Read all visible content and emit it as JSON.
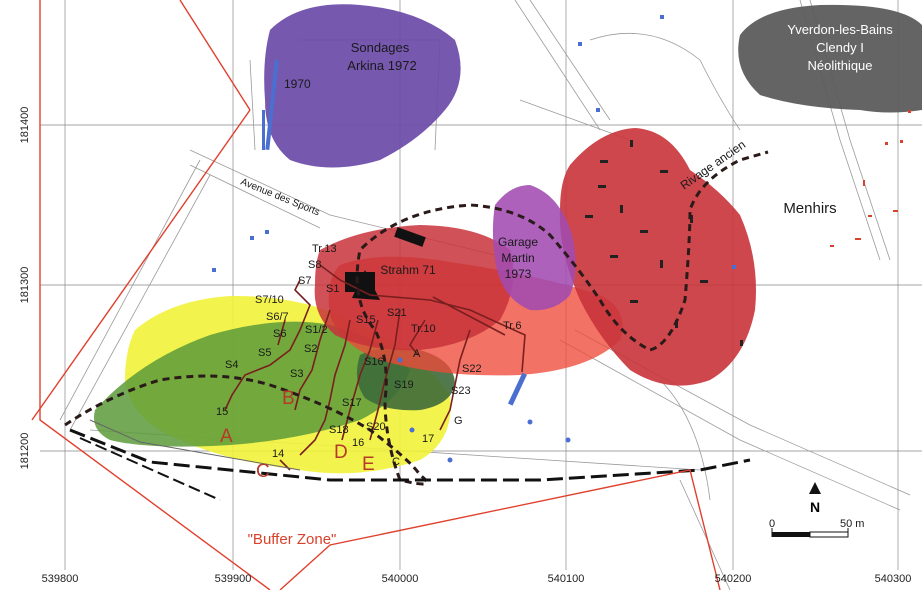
{
  "map": {
    "areas": {
      "sondages": [
        "Sondages",
        "Arkina 1972"
      ],
      "year_1970": "1970",
      "clendy": [
        "Yverdon-les-Bains",
        "Clendy I",
        "Néolithique"
      ],
      "menhirs": "Menhirs",
      "garage": [
        "Garage",
        "Martin",
        "1973"
      ],
      "strahm": "Strahm 71",
      "avenue": "Avenue des Sports",
      "rivage": "Rivage ancien",
      "buffer": "\"Buffer Zone\""
    },
    "soundings": {
      "tr13": "Tr.13",
      "s8": "S8",
      "s7": "S7",
      "s7_10": "S7/10",
      "s6_7": "S6/7",
      "s6": "S6",
      "s5": "S5",
      "s4": "S4",
      "n15": "15",
      "s1": "S1",
      "s1_2": "S1/2",
      "s2": "S2",
      "s3": "S3",
      "s15": "S15",
      "s21": "S21",
      "tr10": "Tr.10",
      "tr6": "Tr.6",
      "s16": "S16",
      "a": "A",
      "s22": "S22",
      "s19": "S19",
      "s23": "S23",
      "s17": "S17",
      "s18": "S18",
      "s20": "S20",
      "g": "G",
      "n16": "16",
      "n17": "17",
      "n14": "14",
      "c_small": "C"
    },
    "zones": {
      "A": "A",
      "B": "B",
      "C": "C",
      "D": "D",
      "E": "E"
    },
    "grid": {
      "x_labels": [
        "539800",
        "539900",
        "540000",
        "540100",
        "540200",
        "540300"
      ],
      "y_labels": [
        "181400",
        "181300",
        "181200"
      ]
    },
    "scale": {
      "zero": "0",
      "end": "50 m",
      "north": "N"
    },
    "colors": {
      "purple": "#6b4aa8",
      "dark_gray": "#5c5c5c",
      "red_zone": "#c8333a",
      "bright_red": "#ee4a3a",
      "yellow": "#f2f23a",
      "green": "#5a9a3a",
      "dark_green": "#3e6a3a",
      "pink_purple": "#a24bb0",
      "boundary": "#e0412e"
    },
    "icons": {
      "north_arrow": "north-arrow-icon"
    }
  }
}
